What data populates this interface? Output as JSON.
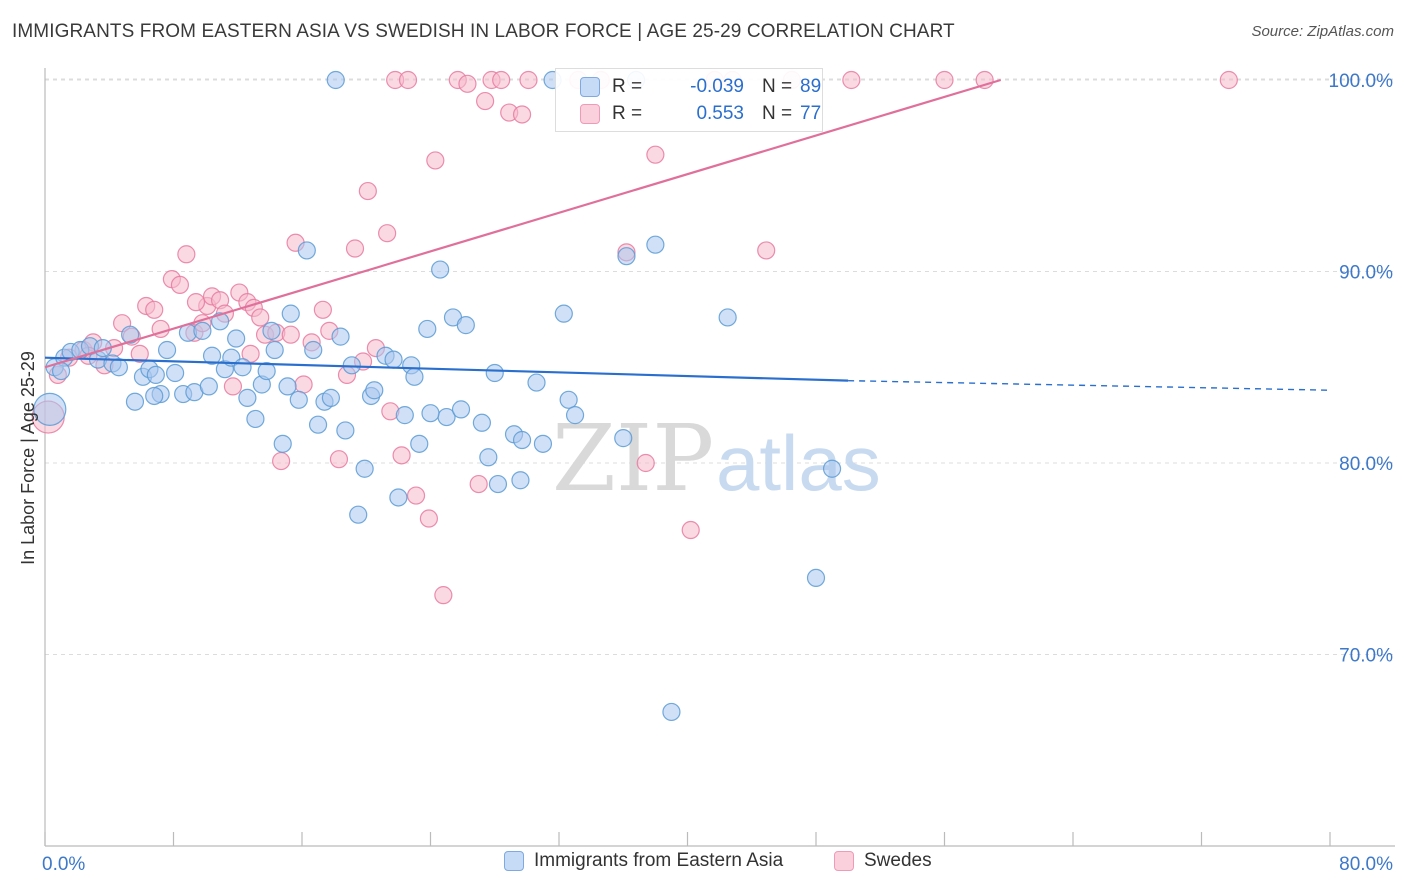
{
  "header": {
    "title": "IMMIGRANTS FROM EASTERN ASIA VS SWEDISH IN LABOR FORCE | AGE 25-29 CORRELATION CHART",
    "source": "Source: ZipAtlas.com"
  },
  "watermark": {
    "zip": "ZIP",
    "atlas": "atlas"
  },
  "colors": {
    "blue": "#5b9bd5",
    "blue_fill": "#a9c6ee",
    "blue_line": "#2a6fce",
    "pink": "#e87aa0",
    "pink_fill": "#f5b9cc",
    "pink_line": "#e0709a",
    "axis_text": "#3d78c9",
    "grid": "#dcdcdc"
  },
  "stats": {
    "rows": [
      {
        "series": "blue",
        "r_label": "R =",
        "r_value": "-0.039",
        "n_label": "N =",
        "n_value": "89"
      },
      {
        "series": "pink",
        "r_label": "R =",
        "r_value": "0.553",
        "n_label": "N =",
        "n_value": "77"
      }
    ]
  },
  "chart_data": {
    "type": "scatter",
    "title": "IMMIGRANTS FROM EASTERN ASIA VS SWEDISH IN LABOR FORCE | AGE 25-29 CORRELATION CHART",
    "xlabel": "",
    "ylabel": "In Labor Force | Age 25-29",
    "xlim": [
      0,
      80
    ],
    "ylim": [
      60,
      101
    ],
    "x_tick_labels": [
      "0.0%",
      "80.0%"
    ],
    "y_ticks": [
      70,
      80,
      90,
      100
    ],
    "y_tick_labels": [
      "70.0%",
      "80.0%",
      "90.0%",
      "100.0%"
    ],
    "grid": true,
    "legend_position": "bottom",
    "series": [
      {
        "name": "Immigrants from Eastern Asia",
        "color": "#5b9bd5",
        "fill": "#a9c6ee",
        "trend": {
          "x": [
            0,
            50
          ],
          "y": [
            85.5,
            84.3
          ],
          "dashed_to_x": 80,
          "dashed_to_y": 83.8
        },
        "points": [
          [
            0.3,
            82.8
          ],
          [
            0.6,
            85.0
          ],
          [
            1.2,
            85.5
          ],
          [
            1.6,
            85.8
          ],
          [
            2.2,
            85.9
          ],
          [
            2.8,
            86.1
          ],
          [
            3.3,
            85.4
          ],
          [
            4.2,
            85.2
          ],
          [
            4.6,
            85.0
          ],
          [
            5.3,
            86.7
          ],
          [
            5.6,
            83.2
          ],
          [
            6.1,
            84.5
          ],
          [
            6.5,
            84.9
          ],
          [
            6.9,
            84.6
          ],
          [
            7.2,
            83.6
          ],
          [
            7.6,
            85.9
          ],
          [
            8.1,
            84.7
          ],
          [
            8.6,
            83.6
          ],
          [
            8.9,
            86.8
          ],
          [
            9.3,
            83.7
          ],
          [
            9.8,
            86.9
          ],
          [
            10.2,
            84.0
          ],
          [
            10.4,
            85.6
          ],
          [
            10.9,
            87.4
          ],
          [
            11.2,
            84.9
          ],
          [
            11.6,
            85.5
          ],
          [
            11.9,
            86.5
          ],
          [
            12.3,
            85.0
          ],
          [
            12.6,
            83.4
          ],
          [
            13.1,
            82.3
          ],
          [
            13.5,
            84.1
          ],
          [
            14.1,
            86.9
          ],
          [
            14.3,
            85.9
          ],
          [
            14.8,
            81.0
          ],
          [
            15.1,
            84.0
          ],
          [
            15.3,
            87.8
          ],
          [
            15.8,
            83.3
          ],
          [
            16.3,
            91.1
          ],
          [
            16.7,
            85.9
          ],
          [
            17.0,
            82.0
          ],
          [
            17.4,
            83.2
          ],
          [
            17.8,
            83.4
          ],
          [
            18.4,
            86.6
          ],
          [
            18.7,
            81.7
          ],
          [
            18.1,
            100.0
          ],
          [
            19.1,
            85.1
          ],
          [
            19.5,
            77.3
          ],
          [
            19.9,
            79.7
          ],
          [
            20.3,
            83.5
          ],
          [
            20.5,
            83.8
          ],
          [
            21.2,
            85.6
          ],
          [
            21.7,
            85.4
          ],
          [
            22.0,
            78.2
          ],
          [
            22.4,
            82.5
          ],
          [
            22.8,
            85.1
          ],
          [
            23.0,
            84.5
          ],
          [
            23.3,
            81.0
          ],
          [
            23.8,
            87.0
          ],
          [
            24.6,
            90.1
          ],
          [
            25.0,
            82.4
          ],
          [
            25.4,
            87.6
          ],
          [
            25.9,
            82.8
          ],
          [
            26.2,
            87.2
          ],
          [
            27.2,
            82.1
          ],
          [
            27.6,
            80.3
          ],
          [
            28.0,
            84.7
          ],
          [
            28.2,
            78.9
          ],
          [
            29.2,
            81.5
          ],
          [
            29.6,
            79.1
          ],
          [
            29.7,
            81.2
          ],
          [
            30.6,
            84.2
          ],
          [
            31.0,
            81.0
          ],
          [
            31.6,
            100.0
          ],
          [
            32.3,
            87.8
          ],
          [
            32.6,
            83.3
          ],
          [
            33.0,
            82.5
          ],
          [
            36.0,
            81.3
          ],
          [
            36.2,
            90.8
          ],
          [
            36.8,
            100.0
          ],
          [
            38.0,
            91.4
          ],
          [
            39.0,
            67.0
          ],
          [
            42.5,
            87.6
          ],
          [
            48.0,
            74.0
          ],
          [
            49.0,
            79.7
          ],
          [
            1.0,
            84.8
          ],
          [
            3.6,
            86.0
          ],
          [
            6.8,
            83.5
          ],
          [
            24.0,
            82.6
          ],
          [
            13.8,
            84.8
          ]
        ]
      },
      {
        "name": "Swedes",
        "color": "#e87aa0",
        "fill": "#f5b9cc",
        "trend": {
          "x": [
            0,
            59.5
          ],
          "y": [
            85.0,
            100.0
          ]
        },
        "points": [
          [
            0.2,
            82.4
          ],
          [
            0.8,
            84.6
          ],
          [
            1.5,
            85.5
          ],
          [
            2.4,
            85.9
          ],
          [
            3.0,
            86.3
          ],
          [
            3.7,
            85.1
          ],
          [
            4.3,
            86.0
          ],
          [
            4.8,
            87.3
          ],
          [
            5.4,
            86.6
          ],
          [
            5.9,
            85.7
          ],
          [
            6.3,
            88.2
          ],
          [
            6.8,
            88.0
          ],
          [
            7.2,
            87.0
          ],
          [
            7.9,
            89.6
          ],
          [
            8.4,
            89.3
          ],
          [
            8.8,
            90.9
          ],
          [
            9.3,
            86.8
          ],
          [
            9.8,
            87.3
          ],
          [
            10.1,
            88.2
          ],
          [
            10.4,
            88.7
          ],
          [
            10.9,
            88.5
          ],
          [
            11.2,
            87.8
          ],
          [
            11.7,
            84.0
          ],
          [
            12.1,
            88.9
          ],
          [
            12.6,
            88.4
          ],
          [
            13.0,
            88.1
          ],
          [
            13.4,
            87.6
          ],
          [
            13.7,
            86.7
          ],
          [
            14.4,
            86.8
          ],
          [
            14.7,
            80.1
          ],
          [
            15.3,
            86.7
          ],
          [
            15.6,
            91.5
          ],
          [
            16.1,
            84.1
          ],
          [
            16.6,
            86.3
          ],
          [
            17.3,
            88.0
          ],
          [
            17.7,
            86.9
          ],
          [
            18.3,
            80.2
          ],
          [
            18.8,
            84.6
          ],
          [
            19.3,
            91.2
          ],
          [
            19.8,
            85.3
          ],
          [
            20.1,
            94.2
          ],
          [
            20.6,
            86.0
          ],
          [
            21.3,
            92.0
          ],
          [
            21.8,
            100.0
          ],
          [
            22.2,
            80.4
          ],
          [
            22.6,
            100.0
          ],
          [
            23.1,
            78.3
          ],
          [
            23.9,
            77.1
          ],
          [
            24.3,
            95.8
          ],
          [
            24.8,
            73.1
          ],
          [
            25.7,
            100.0
          ],
          [
            26.3,
            99.8
          ],
          [
            27.0,
            78.9
          ],
          [
            27.4,
            98.9
          ],
          [
            27.8,
            100.0
          ],
          [
            28.4,
            100.0
          ],
          [
            28.9,
            98.3
          ],
          [
            29.7,
            98.2
          ],
          [
            30.1,
            100.0
          ],
          [
            33.2,
            100.0
          ],
          [
            34.6,
            100.0
          ],
          [
            36.2,
            91.0
          ],
          [
            37.4,
            80.0
          ],
          [
            38.0,
            96.1
          ],
          [
            40.2,
            76.5
          ],
          [
            41.7,
            100.0
          ],
          [
            42.8,
            100.0
          ],
          [
            44.9,
            91.1
          ],
          [
            46.5,
            100.0
          ],
          [
            50.2,
            100.0
          ],
          [
            56.0,
            100.0
          ],
          [
            58.5,
            100.0
          ],
          [
            73.7,
            100.0
          ],
          [
            2.7,
            85.6
          ],
          [
            9.4,
            88.4
          ],
          [
            12.8,
            85.7
          ],
          [
            21.5,
            82.7
          ]
        ]
      }
    ]
  }
}
